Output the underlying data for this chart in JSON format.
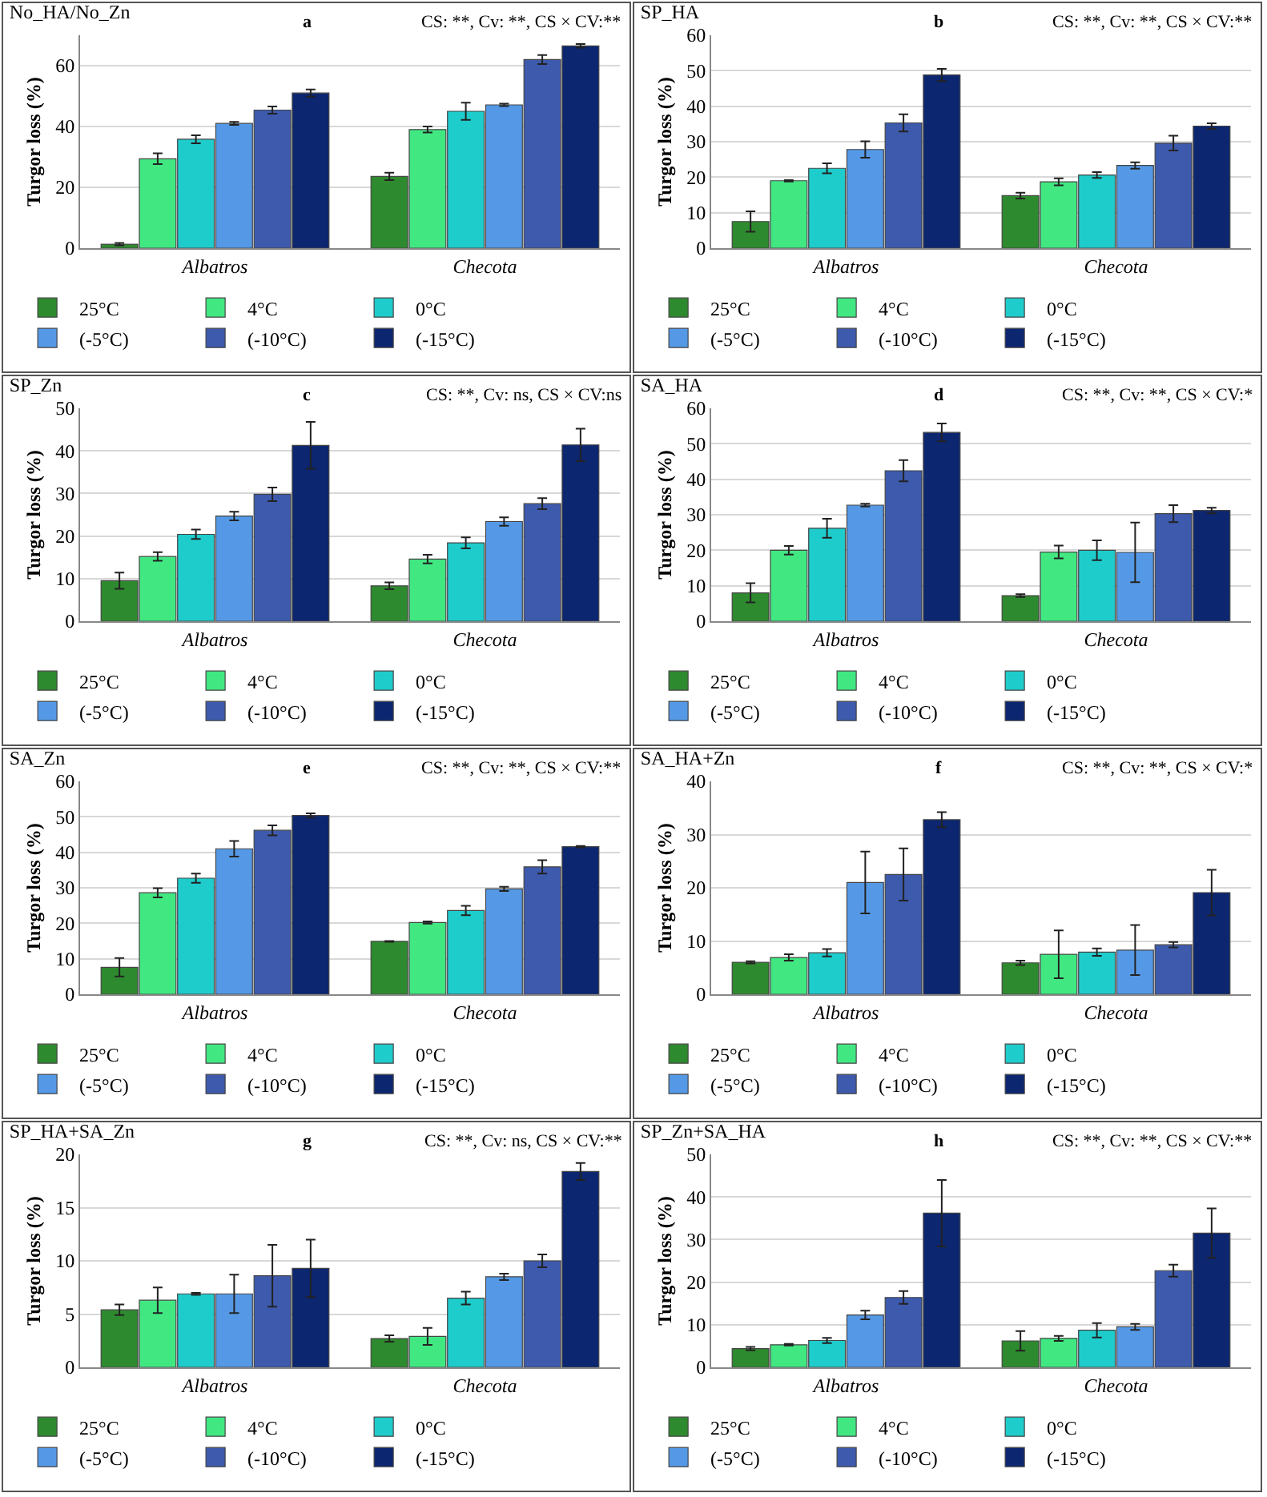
{
  "chart_data": [
    {
      "type": "bar",
      "title": "No_HA/No_Zn",
      "annotations": [
        "a",
        "CS: **, Cv: **, CS × CV:**"
      ],
      "ylabel": "Turgor loss (%)",
      "categories": [
        "Albatros",
        "Checota"
      ],
      "ylim": [
        0,
        70
      ],
      "yticks": [
        0,
        20,
        40,
        60
      ],
      "grid": "y",
      "legend": "bottom",
      "series": [
        {
          "name": "25°C",
          "color": "#2e8a2e",
          "values": [
            1.3,
            23.6
          ],
          "errors": [
            0.4,
            1.2
          ]
        },
        {
          "name": "4°C",
          "color": "#41e882",
          "values": [
            29.4,
            39.0
          ],
          "errors": [
            1.8,
            1.0
          ]
        },
        {
          "name": "0°C",
          "color": "#1fcccc",
          "values": [
            35.8,
            45.0
          ],
          "errors": [
            1.3,
            2.8
          ]
        },
        {
          "name": "(-5°C)",
          "color": "#5599e6",
          "values": [
            41.0,
            47.1
          ],
          "errors": [
            0.5,
            0.4
          ]
        },
        {
          "name": "(-10°C)",
          "color": "#3d5aad",
          "values": [
            45.4,
            62.0
          ],
          "errors": [
            1.2,
            1.5
          ]
        },
        {
          "name": "(-15°C)",
          "color": "#0c2670",
          "values": [
            51.0,
            66.5
          ],
          "errors": [
            1.2,
            0.6
          ]
        }
      ]
    },
    {
      "type": "bar",
      "title": "SP_HA",
      "annotations": [
        "b",
        "CS: **, Cv: **, CS × CV:**"
      ],
      "ylabel": "Turgor loss (%)",
      "categories": [
        "Albatros",
        "Checota"
      ],
      "ylim": [
        0,
        60
      ],
      "yticks": [
        0,
        10,
        20,
        30,
        40,
        50,
        60
      ],
      "grid": "y",
      "legend": "bottom",
      "series": [
        {
          "name": "25°C",
          "color": "#2e8a2e",
          "values": [
            7.5,
            14.8
          ],
          "errors": [
            2.9,
            0.8
          ]
        },
        {
          "name": "4°C",
          "color": "#41e882",
          "values": [
            19.0,
            18.7
          ],
          "errors": [
            0.2,
            1.0
          ]
        },
        {
          "name": "0°C",
          "color": "#1fcccc",
          "values": [
            22.5,
            20.6
          ],
          "errors": [
            1.4,
            0.8
          ]
        },
        {
          "name": "(-5°C)",
          "color": "#5599e6",
          "values": [
            27.8,
            23.3
          ],
          "errors": [
            2.3,
            0.9
          ]
        },
        {
          "name": "(-10°C)",
          "color": "#3d5aad",
          "values": [
            35.3,
            29.6
          ],
          "errors": [
            2.4,
            2.1
          ]
        },
        {
          "name": "(-15°C)",
          "color": "#0c2670",
          "values": [
            48.8,
            34.4
          ],
          "errors": [
            1.7,
            0.8
          ]
        }
      ]
    },
    {
      "type": "bar",
      "title": "SP_Zn",
      "annotations": [
        "c",
        "CS: **, Cv: ns, CS × CV:ns"
      ],
      "ylabel": "Turgor loss (%)",
      "categories": [
        "Albatros",
        "Checota"
      ],
      "ylim": [
        0,
        50
      ],
      "yticks": [
        0,
        10,
        20,
        30,
        40,
        50
      ],
      "grid": "y",
      "legend": "bottom",
      "series": [
        {
          "name": "25°C",
          "color": "#2e8a2e",
          "values": [
            9.5,
            8.3
          ],
          "errors": [
            1.9,
            0.8
          ]
        },
        {
          "name": "4°C",
          "color": "#41e882",
          "values": [
            15.2,
            14.6
          ],
          "errors": [
            1.0,
            1.0
          ]
        },
        {
          "name": "0°C",
          "color": "#1fcccc",
          "values": [
            20.4,
            18.4
          ],
          "errors": [
            1.1,
            1.3
          ]
        },
        {
          "name": "(-5°C)",
          "color": "#5599e6",
          "values": [
            24.7,
            23.4
          ],
          "errors": [
            1.0,
            1.0
          ]
        },
        {
          "name": "(-10°C)",
          "color": "#3d5aad",
          "values": [
            29.8,
            27.6
          ],
          "errors": [
            1.6,
            1.3
          ]
        },
        {
          "name": "(-15°C)",
          "color": "#0c2670",
          "values": [
            41.3,
            41.4
          ],
          "errors": [
            5.5,
            3.8
          ]
        }
      ]
    },
    {
      "type": "bar",
      "title": "SA_HA",
      "annotations": [
        "d",
        "CS: **, Cv: **, CS × CV:*"
      ],
      "ylabel": "Turgor loss (%)",
      "categories": [
        "Albatros",
        "Checota"
      ],
      "ylim": [
        0,
        60
      ],
      "yticks": [
        0,
        10,
        20,
        30,
        40,
        50,
        60
      ],
      "grid": "y",
      "legend": "bottom",
      "series": [
        {
          "name": "25°C",
          "color": "#2e8a2e",
          "values": [
            8.0,
            7.2
          ],
          "errors": [
            2.7,
            0.4
          ]
        },
        {
          "name": "4°C",
          "color": "#41e882",
          "values": [
            20.0,
            19.5
          ],
          "errors": [
            1.2,
            1.8
          ]
        },
        {
          "name": "0°C",
          "color": "#1fcccc",
          "values": [
            26.2,
            20.0
          ],
          "errors": [
            2.7,
            2.8
          ]
        },
        {
          "name": "(-5°C)",
          "color": "#5599e6",
          "values": [
            32.7,
            19.4
          ],
          "errors": [
            0.4,
            8.4
          ]
        },
        {
          "name": "(-10°C)",
          "color": "#3d5aad",
          "values": [
            42.4,
            30.3
          ],
          "errors": [
            3.0,
            2.4
          ]
        },
        {
          "name": "(-15°C)",
          "color": "#0c2670",
          "values": [
            53.2,
            31.2
          ],
          "errors": [
            2.5,
            0.8
          ]
        }
      ]
    },
    {
      "type": "bar",
      "title": "SA_Zn",
      "annotations": [
        "e",
        "CS: **, Cv: **, CS × CV:**"
      ],
      "ylabel": "Turgor loss (%)",
      "categories": [
        "Albatros",
        "Checota"
      ],
      "ylim": [
        0,
        60
      ],
      "yticks": [
        0,
        10,
        20,
        30,
        40,
        50,
        60
      ],
      "grid": "y",
      "legend": "bottom",
      "series": [
        {
          "name": "25°C",
          "color": "#2e8a2e",
          "values": [
            7.6,
            14.9
          ],
          "errors": [
            2.6,
            0.1
          ]
        },
        {
          "name": "4°C",
          "color": "#41e882",
          "values": [
            28.6,
            20.2
          ],
          "errors": [
            1.3,
            0.3
          ]
        },
        {
          "name": "0°C",
          "color": "#1fcccc",
          "values": [
            32.7,
            23.6
          ],
          "errors": [
            1.3,
            1.3
          ]
        },
        {
          "name": "(-5°C)",
          "color": "#5599e6",
          "values": [
            41.0,
            29.7
          ],
          "errors": [
            2.2,
            0.6
          ]
        },
        {
          "name": "(-10°C)",
          "color": "#3d5aad",
          "values": [
            46.2,
            35.9
          ],
          "errors": [
            1.4,
            1.9
          ]
        },
        {
          "name": "(-15°C)",
          "color": "#0c2670",
          "values": [
            50.4,
            41.6
          ],
          "errors": [
            0.6,
            0.2
          ]
        }
      ]
    },
    {
      "type": "bar",
      "title": "SA_HA+Zn",
      "annotations": [
        "f",
        "CS: **, Cv: **, CS × CV:*"
      ],
      "ylabel": "Turgor loss (%)",
      "categories": [
        "Albatros",
        "Checota"
      ],
      "ylim": [
        0,
        40
      ],
      "yticks": [
        0,
        10,
        20,
        30,
        40
      ],
      "grid": "y",
      "legend": "bottom",
      "series": [
        {
          "name": "25°C",
          "color": "#2e8a2e",
          "values": [
            6.0,
            5.9
          ],
          "errors": [
            0.2,
            0.4
          ]
        },
        {
          "name": "4°C",
          "color": "#41e882",
          "values": [
            6.9,
            7.5
          ],
          "errors": [
            0.6,
            4.5
          ]
        },
        {
          "name": "0°C",
          "color": "#1fcccc",
          "values": [
            7.8,
            7.9
          ],
          "errors": [
            0.7,
            0.7
          ]
        },
        {
          "name": "(-5°C)",
          "color": "#5599e6",
          "values": [
            21.0,
            8.3
          ],
          "errors": [
            5.8,
            4.7
          ]
        },
        {
          "name": "(-10°C)",
          "color": "#3d5aad",
          "values": [
            22.5,
            9.3
          ],
          "errors": [
            4.9,
            0.5
          ]
        },
        {
          "name": "(-15°C)",
          "color": "#0c2670",
          "values": [
            32.8,
            19.1
          ],
          "errors": [
            1.4,
            4.3
          ]
        }
      ]
    },
    {
      "type": "bar",
      "title": "SP_HA+SA_Zn",
      "annotations": [
        "g",
        "CS: **, Cv: ns, CS × CV:**"
      ],
      "ylabel": "Turgor loss (%)",
      "categories": [
        "Albatros",
        "Checota"
      ],
      "ylim": [
        0,
        20
      ],
      "yticks": [
        0,
        5,
        10,
        15,
        20
      ],
      "grid": "y",
      "legend": "bottom",
      "series": [
        {
          "name": "25°C",
          "color": "#2e8a2e",
          "values": [
            5.4,
            2.7
          ],
          "errors": [
            0.5,
            0.3
          ]
        },
        {
          "name": "4°C",
          "color": "#41e882",
          "values": [
            6.3,
            2.9
          ],
          "errors": [
            1.2,
            0.8
          ]
        },
        {
          "name": "0°C",
          "color": "#1fcccc",
          "values": [
            6.9,
            6.5
          ],
          "errors": [
            0.1,
            0.6
          ]
        },
        {
          "name": "(-5°C)",
          "color": "#5599e6",
          "values": [
            6.9,
            8.5
          ],
          "errors": [
            1.8,
            0.3
          ]
        },
        {
          "name": "(-10°C)",
          "color": "#3d5aad",
          "values": [
            8.6,
            10.0
          ],
          "errors": [
            2.9,
            0.6
          ]
        },
        {
          "name": "(-15°C)",
          "color": "#0c2670",
          "values": [
            9.3,
            18.4
          ],
          "errors": [
            2.7,
            0.8
          ]
        }
      ]
    },
    {
      "type": "bar",
      "title": "SP_Zn+SA_HA",
      "annotations": [
        "h",
        "CS: **, Cv: **, CS × CV:**"
      ],
      "ylabel": "Turgor loss (%)",
      "categories": [
        "Albatros",
        "Checota"
      ],
      "ylim": [
        0,
        50
      ],
      "yticks": [
        0,
        10,
        20,
        30,
        40,
        50
      ],
      "grid": "y",
      "legend": "bottom",
      "series": [
        {
          "name": "25°C",
          "color": "#2e8a2e",
          "values": [
            4.4,
            6.2
          ],
          "errors": [
            0.4,
            2.3
          ]
        },
        {
          "name": "4°C",
          "color": "#41e882",
          "values": [
            5.3,
            6.8
          ],
          "errors": [
            0.2,
            0.6
          ]
        },
        {
          "name": "0°C",
          "color": "#1fcccc",
          "values": [
            6.3,
            8.7
          ],
          "errors": [
            0.6,
            1.7
          ]
        },
        {
          "name": "(-5°C)",
          "color": "#5599e6",
          "values": [
            12.3,
            9.5
          ],
          "errors": [
            1.0,
            0.7
          ]
        },
        {
          "name": "(-10°C)",
          "color": "#3d5aad",
          "values": [
            16.4,
            22.7
          ],
          "errors": [
            1.5,
            1.4
          ]
        },
        {
          "name": "(-15°C)",
          "color": "#0c2670",
          "values": [
            36.2,
            31.5
          ],
          "errors": [
            7.8,
            5.8
          ]
        }
      ]
    }
  ]
}
